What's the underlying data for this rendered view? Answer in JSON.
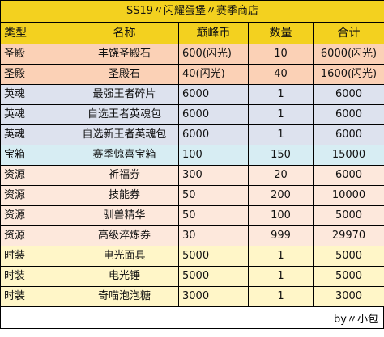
{
  "title": "SS19〃闪耀蛋堡〃赛季商店",
  "headers": [
    "类型",
    "名称",
    "巅峰币",
    "数量",
    "合计"
  ],
  "rows": [
    {
      "type": "圣殿",
      "name": "丰饶圣殿石",
      "price": "600(闪光)",
      "qty": "10",
      "total": "6000(闪光)",
      "group": "sd"
    },
    {
      "type": "圣殿",
      "name": "圣殿石",
      "price": "40(闪光)",
      "qty": "40",
      "total": "1600(闪光)",
      "group": "sd"
    },
    {
      "type": "英魂",
      "name": "最强王者碎片",
      "price": "6000",
      "qty": "1",
      "total": "6000",
      "group": "yh"
    },
    {
      "type": "英魂",
      "name": "自选王者英魂包",
      "price": "6000",
      "qty": "1",
      "total": "6000",
      "group": "yh"
    },
    {
      "type": "英魂",
      "name": "自选新王者英魂包",
      "price": "6000",
      "qty": "1",
      "total": "6000",
      "group": "yh"
    },
    {
      "type": "宝箱",
      "name": "赛季惊喜宝箱",
      "price": "100",
      "qty": "150",
      "total": "15000",
      "group": "bx"
    },
    {
      "type": "资源",
      "name": "祈福券",
      "price": "300",
      "qty": "20",
      "total": "6000",
      "group": "zy"
    },
    {
      "type": "资源",
      "name": "技能券",
      "price": "50",
      "qty": "200",
      "total": "10000",
      "group": "zy"
    },
    {
      "type": "资源",
      "name": "驯兽精华",
      "price": "50",
      "qty": "100",
      "total": "5000",
      "group": "zy"
    },
    {
      "type": "资源",
      "name": "高级淬炼券",
      "price": "30",
      "qty": "999",
      "total": "29970",
      "group": "zy"
    },
    {
      "type": "时装",
      "name": "电光面具",
      "price": "5000",
      "qty": "1",
      "total": "5000",
      "group": "sz"
    },
    {
      "type": "时装",
      "name": "电光锤",
      "price": "5000",
      "qty": "1",
      "total": "5000",
      "group": "sz"
    },
    {
      "type": "时装",
      "name": "奇喵泡泡糖",
      "price": "3000",
      "qty": "1",
      "total": "3000",
      "group": "sz"
    }
  ],
  "footer": "by〃小包",
  "colors": {
    "header": "#f3d11f",
    "sd": "#fbd1b6",
    "yh": "#dde2ee",
    "bx": "#d7edf3",
    "zy": "#fde8dc",
    "sz": "#fff6c8"
  }
}
